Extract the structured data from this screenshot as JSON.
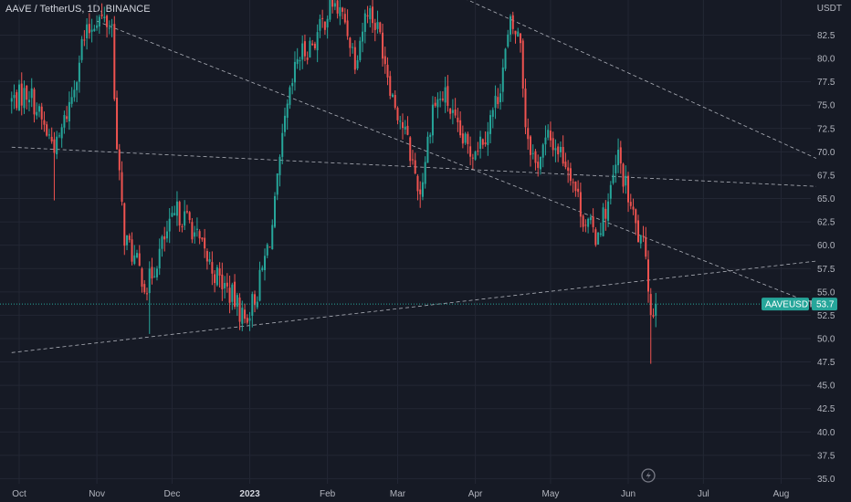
{
  "header": {
    "title": "AAVE / TetherUS, 1D, BINANCE",
    "currency": "USDT"
  },
  "chart_data": {
    "type": "candlestick",
    "symbol": "AAVEUSDT",
    "last_price_label": "53.7",
    "last_price": 53.7,
    "ylim": [
      35.0,
      85.0
    ],
    "y_ticks": [
      35.0,
      37.5,
      40.0,
      42.5,
      45.0,
      47.5,
      50.0,
      52.5,
      55.0,
      57.5,
      60.0,
      62.5,
      65.0,
      67.5,
      70.0,
      72.5,
      75.0,
      77.5,
      80.0,
      82.5
    ],
    "y_tick_labels": [
      "35.0",
      "37.5",
      "40.0",
      "42.5",
      "45.0",
      "47.5",
      "50.0",
      "52.5",
      "55.0",
      "57.5",
      "60.0",
      "62.5",
      "65.0",
      "67.5",
      "70.0",
      "72.5",
      "75.0",
      "77.5",
      "80.0",
      "82.5"
    ],
    "x_ticks": [
      {
        "label": "Oct",
        "date": "2022-10-01"
      },
      {
        "label": "Nov",
        "date": "2022-11-01"
      },
      {
        "label": "Dec",
        "date": "2022-12-01"
      },
      {
        "label": "2023",
        "date": "2023-01-01"
      },
      {
        "label": "Feb",
        "date": "2023-02-01"
      },
      {
        "label": "Mar",
        "date": "2023-03-01"
      },
      {
        "label": "Apr",
        "date": "2023-04-01"
      },
      {
        "label": "May",
        "date": "2023-05-01"
      },
      {
        "label": "Jun",
        "date": "2023-06-01"
      },
      {
        "label": "Jul",
        "date": "2023-07-01"
      },
      {
        "label": "Aug",
        "date": "2023-08-01"
      }
    ],
    "price_path": [
      [
        "2022-09-28",
        75.5
      ],
      [
        "2022-10-05",
        76.5
      ],
      [
        "2022-10-12",
        72.0
      ],
      [
        "2022-10-16",
        70.5
      ],
      [
        "2022-10-22",
        76.0
      ],
      [
        "2022-10-26",
        81.5
      ],
      [
        "2022-11-01",
        84.5
      ],
      [
        "2022-11-07",
        83.5
      ],
      [
        "2022-11-09",
        70.0
      ],
      [
        "2022-11-12",
        61.0
      ],
      [
        "2022-11-16",
        58.5
      ],
      [
        "2022-11-21",
        55.5
      ],
      [
        "2022-11-27",
        60.0
      ],
      [
        "2022-12-03",
        63.5
      ],
      [
        "2022-12-08",
        62.5
      ],
      [
        "2022-12-13",
        59.5
      ],
      [
        "2022-12-18",
        57.0
      ],
      [
        "2022-12-25",
        54.5
      ],
      [
        "2022-12-30",
        52.0
      ],
      [
        "2023-01-04",
        55.0
      ],
      [
        "2023-01-10",
        62.0
      ],
      [
        "2023-01-15",
        73.0
      ],
      [
        "2023-01-20",
        80.0
      ],
      [
        "2023-01-27",
        82.0
      ],
      [
        "2023-02-03",
        86.0
      ],
      [
        "2023-02-08",
        84.0
      ],
      [
        "2023-02-12",
        80.0
      ],
      [
        "2023-02-17",
        85.5
      ],
      [
        "2023-02-22",
        82.5
      ],
      [
        "2023-02-27",
        76.0
      ],
      [
        "2023-03-04",
        72.0
      ],
      [
        "2023-03-10",
        65.5
      ],
      [
        "2023-03-15",
        75.0
      ],
      [
        "2023-03-20",
        76.0
      ],
      [
        "2023-03-25",
        72.0
      ],
      [
        "2023-03-30",
        70.0
      ],
      [
        "2023-04-05",
        72.0
      ],
      [
        "2023-04-10",
        76.0
      ],
      [
        "2023-04-15",
        83.5
      ],
      [
        "2023-04-19",
        82.0
      ],
      [
        "2023-04-21",
        73.0
      ],
      [
        "2023-04-25",
        68.5
      ],
      [
        "2023-04-30",
        71.5
      ],
      [
        "2023-05-05",
        70.0
      ],
      [
        "2023-05-09",
        68.0
      ],
      [
        "2023-05-14",
        63.0
      ],
      [
        "2023-05-19",
        61.0
      ],
      [
        "2023-05-24",
        64.5
      ],
      [
        "2023-05-28",
        69.5
      ],
      [
        "2023-06-02",
        64.0
      ],
      [
        "2023-06-06",
        60.0
      ],
      [
        "2023-06-08",
        59.5
      ],
      [
        "2023-06-10",
        52.5
      ],
      [
        "2023-06-12",
        53.7
      ]
    ],
    "wick_extremes": [
      {
        "date": "2022-10-15",
        "low": 64.8
      },
      {
        "date": "2022-11-22",
        "low": 50.5
      },
      {
        "date": "2023-03-10",
        "low": 64.0
      },
      {
        "date": "2023-06-10",
        "low": 47.3
      }
    ],
    "trendlines": [
      {
        "from": [
          "2022-09-28",
          48.5
        ],
        "to": [
          "2023-08-15",
          58.3
        ]
      },
      {
        "from": [
          "2022-09-28",
          70.5
        ],
        "to": [
          "2023-08-15",
          66.3
        ]
      },
      {
        "from": [
          "2022-11-01",
          84.0
        ],
        "to": [
          "2023-08-15",
          53.6
        ]
      },
      {
        "from": [
          "2023-03-23",
          87.0
        ],
        "to": [
          "2023-08-15",
          69.3
        ]
      }
    ],
    "grid": true,
    "colors": {
      "background": "#161a25",
      "grid": "#232734",
      "up": "#26a69a",
      "down": "#ef5350",
      "trendline": "#c8cbd3",
      "last_price_badge": "#26a69a"
    }
  }
}
